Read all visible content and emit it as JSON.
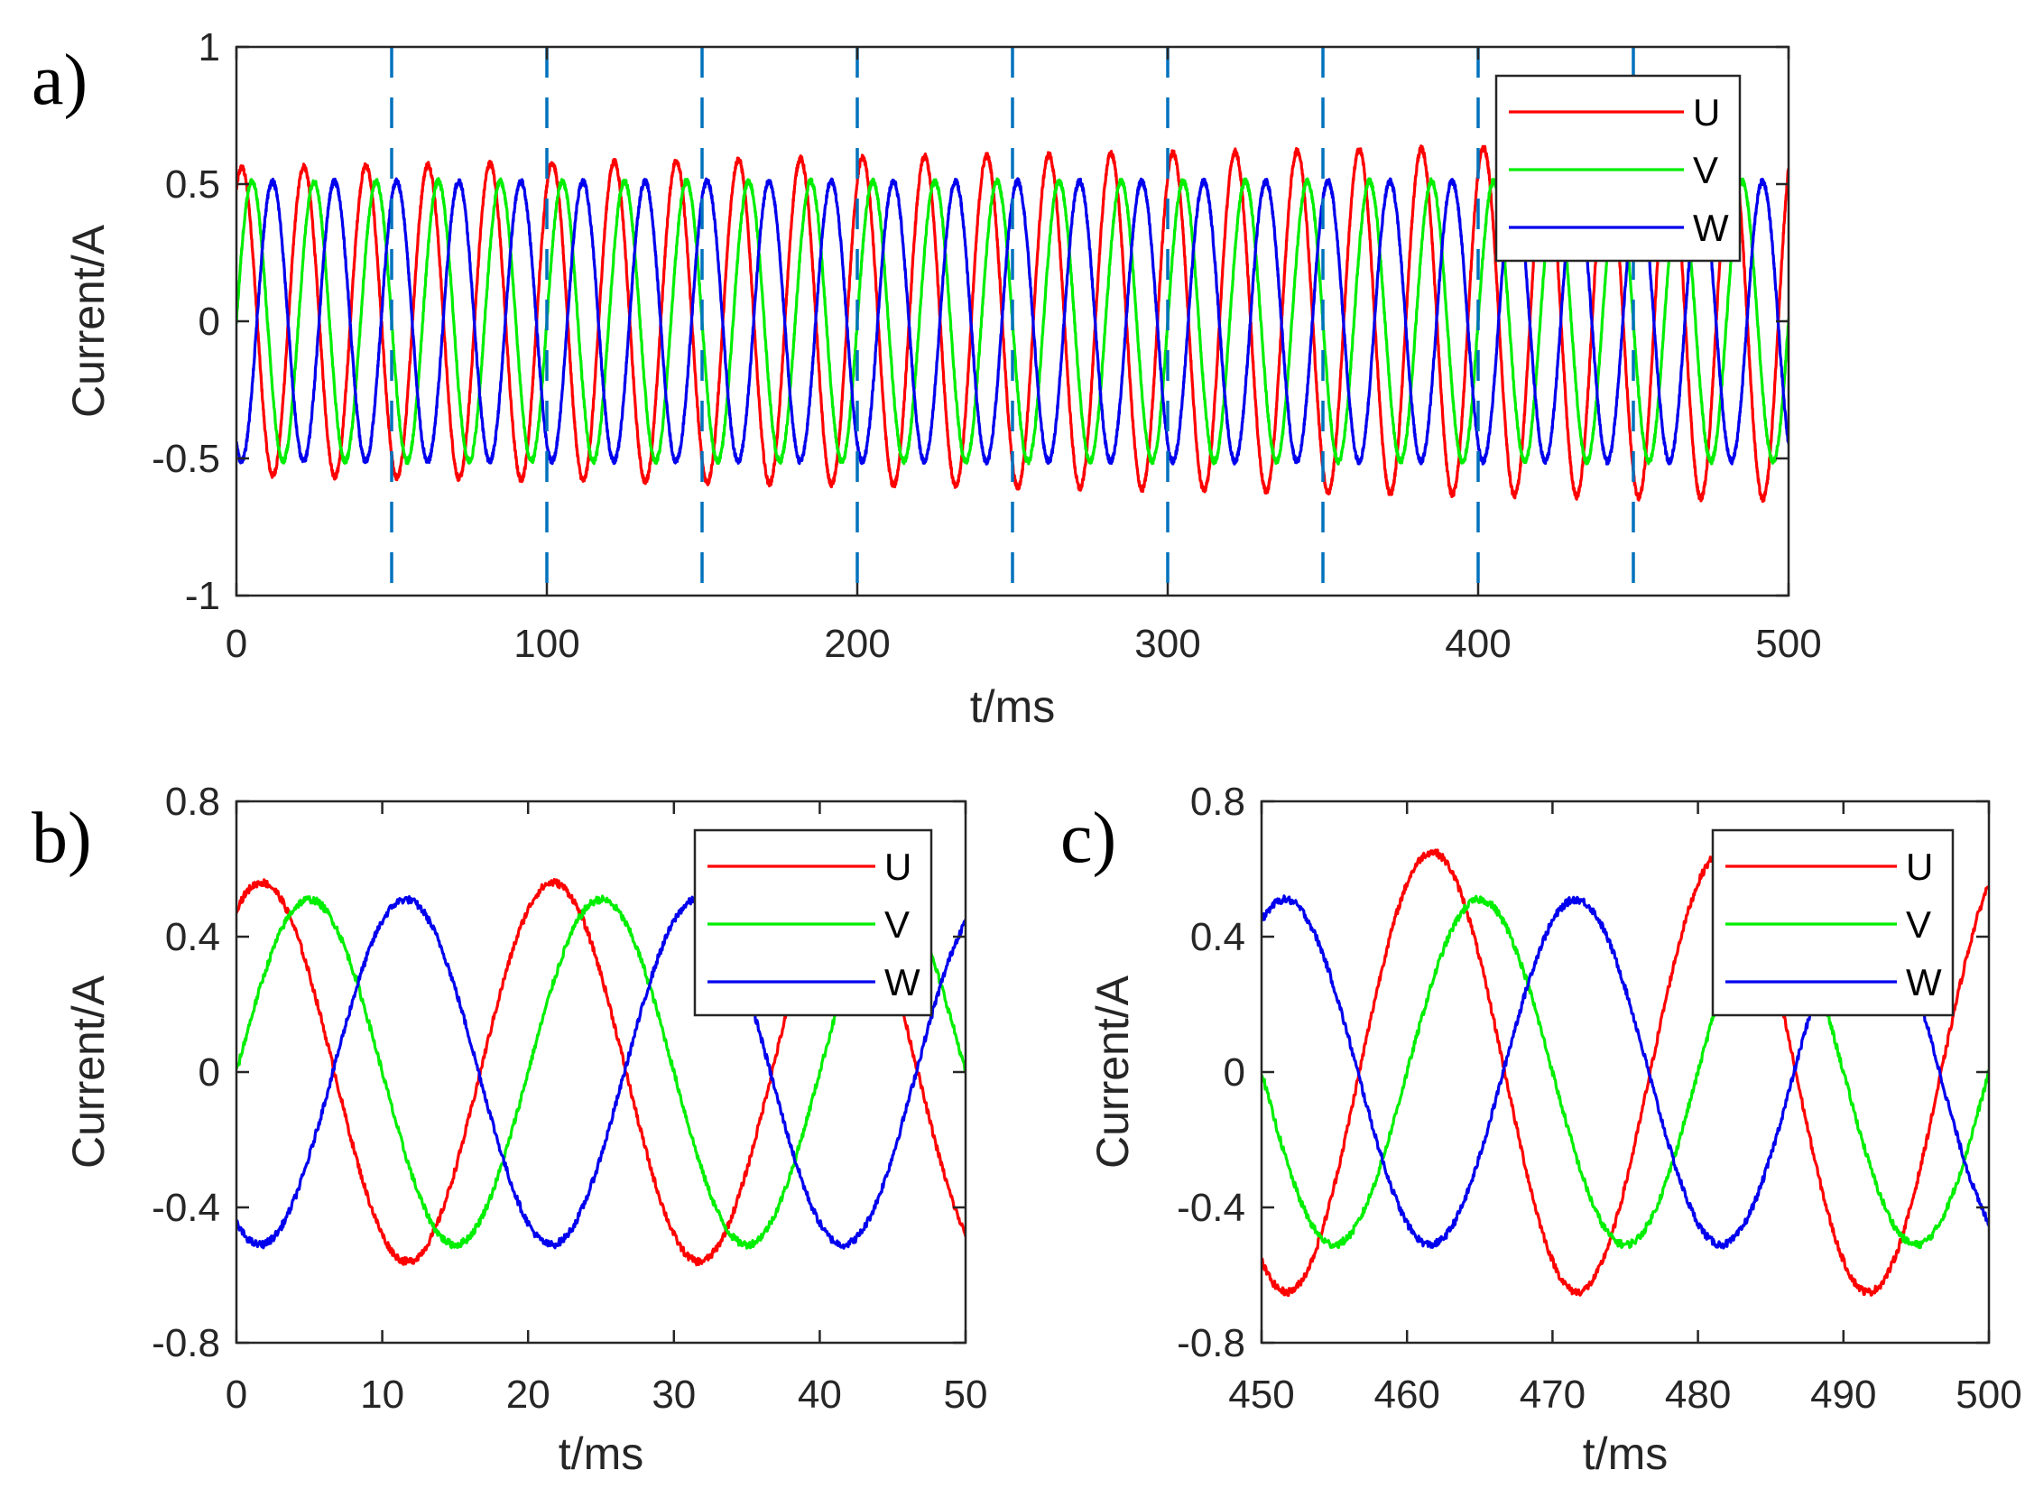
{
  "figure": {
    "panel_labels": [
      "a)",
      "b)",
      "c)"
    ]
  },
  "chart_data": [
    {
      "panel": "a)",
      "type": "line",
      "xlabel": "t/ms",
      "ylabel": "Current/A",
      "xlim": [
        0,
        500
      ],
      "ylim": [
        -1,
        1
      ],
      "xticks": [
        "0",
        "100",
        "200",
        "300",
        "400",
        "500"
      ],
      "yticks": [
        "-1",
        "-0.5",
        "0",
        "0.5",
        "1"
      ],
      "frequency_hz": 50,
      "dashed_vlines_x": [
        50,
        100,
        150,
        200,
        250,
        300,
        350,
        400,
        450
      ],
      "dashed_vline_color": "#0072BD",
      "legend_position": "top-right",
      "series": [
        {
          "name": "U",
          "color": "#ff0000",
          "amplitude": [
            0.56,
            0.65
          ],
          "phase_deg": 59
        },
        {
          "name": "V",
          "color": "#00ee00",
          "amplitude": [
            0.51,
            0.51
          ],
          "phase_deg": 0
        },
        {
          "name": "W",
          "color": "#0000ee",
          "amplitude": [
            0.51,
            0.51
          ],
          "phase_deg": -119
        }
      ]
    },
    {
      "panel": "b)",
      "type": "line",
      "xlabel": "t/ms",
      "ylabel": "Current/A",
      "xlim": [
        0,
        50
      ],
      "ylim": [
        -0.8,
        0.8
      ],
      "xticks": [
        "0",
        "10",
        "20",
        "30",
        "40",
        "50"
      ],
      "yticks": [
        "-0.8",
        "-0.4",
        "0",
        "0.4",
        "0.8"
      ],
      "frequency_hz": 50,
      "legend_position": "top-right",
      "series": [
        {
          "name": "U",
          "color": "#ff0000",
          "amplitude": [
            0.56,
            0.56
          ],
          "phase_deg": 59
        },
        {
          "name": "V",
          "color": "#00ee00",
          "amplitude": [
            0.51,
            0.51
          ],
          "phase_deg": 0
        },
        {
          "name": "W",
          "color": "#0000ee",
          "amplitude": [
            0.51,
            0.51
          ],
          "phase_deg": -119
        }
      ]
    },
    {
      "panel": "c)",
      "type": "line",
      "xlabel": "t/ms",
      "ylabel": "Current/A",
      "xlim": [
        450,
        500
      ],
      "ylim": [
        -0.8,
        0.8
      ],
      "xticks": [
        "450",
        "460",
        "470",
        "480",
        "490",
        "500"
      ],
      "yticks": [
        "-0.8",
        "-0.4",
        "0",
        "0.4",
        "0.8"
      ],
      "frequency_hz": 50,
      "legend_position": "top-right",
      "series": [
        {
          "name": "U",
          "color": "#ff0000",
          "amplitude": [
            0.65,
            0.65
          ],
          "phase_deg": 59
        },
        {
          "name": "V",
          "color": "#00ee00",
          "amplitude": [
            0.51,
            0.51
          ],
          "phase_deg": 0
        },
        {
          "name": "W",
          "color": "#0000ee",
          "amplitude": [
            0.51,
            0.51
          ],
          "phase_deg": -119
        }
      ]
    }
  ]
}
